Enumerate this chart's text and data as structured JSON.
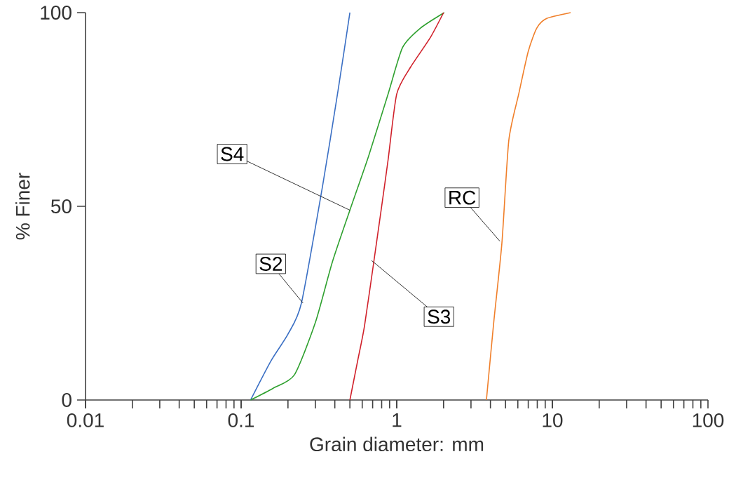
{
  "chart_data": {
    "type": "line",
    "xlabel": "Grain diameter: mm",
    "ylabel": "% Finer",
    "log": "x",
    "xlim": [
      0.01,
      100
    ],
    "ylim": [
      0,
      100
    ],
    "xticks": [
      0.01,
      0.1,
      1,
      10,
      100
    ],
    "yticks": [
      0,
      50,
      100
    ],
    "grid": false,
    "marker": "none",
    "line_style": "solid",
    "series": [
      {
        "color": "#3a6fc4",
        "x": [
          0.115,
          0.155,
          0.2,
          0.244,
          0.333,
          0.42,
          0.5
        ],
        "values": [
          0,
          10,
          17,
          25,
          55,
          80,
          100
        ]
      },
      {
        "color": "#2ea02e",
        "x": [
          0.115,
          0.16,
          0.22,
          0.3,
          0.385,
          0.5,
          0.66,
          0.88,
          1.09,
          1.42,
          2.02
        ],
        "values": [
          0,
          3,
          6.5,
          20,
          35.5,
          49,
          63,
          79,
          91,
          96,
          100
        ]
      },
      {
        "color": "#d0202a",
        "x": [
          0.5,
          0.56,
          0.62,
          0.72,
          0.8,
          0.88,
          1.0,
          1.23,
          1.64,
          2.0
        ],
        "values": [
          0,
          10,
          19,
          37,
          50,
          62,
          79,
          86,
          93.5,
          100
        ]
      },
      {
        "color": "#f07f2a",
        "x": [
          3.77,
          4.2,
          4.74,
          5.25,
          6.08,
          7.0,
          7.94,
          9.2,
          13.1
        ],
        "values": [
          0,
          20,
          40.5,
          67,
          79,
          90,
          96,
          98.5,
          100
        ]
      }
    ],
    "annotations": [
      {
        "text": "S4",
        "x": 0.5,
        "y": 49
      },
      {
        "text": "S2",
        "x": 0.25,
        "y": 25
      },
      {
        "text": "S3",
        "x": 0.69,
        "y": 36
      },
      {
        "text": "RC",
        "x": 4.6,
        "y": 41
      }
    ]
  }
}
